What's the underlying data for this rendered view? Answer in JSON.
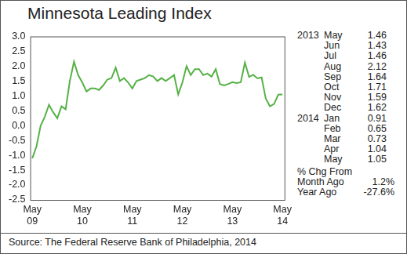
{
  "chart_data": {
    "type": "line",
    "title": "Minnesota Leading Index",
    "source": "Source: The Federal Reserve Bank of Philadelphia, 2014",
    "color": "#56b146",
    "grid": false,
    "categories": [
      "May 09",
      null,
      null,
      null,
      null,
      null,
      null,
      null,
      null,
      null,
      null,
      null,
      "May 10",
      null,
      null,
      null,
      null,
      null,
      null,
      null,
      null,
      null,
      null,
      null,
      "May 11",
      null,
      null,
      null,
      null,
      null,
      null,
      null,
      null,
      null,
      null,
      null,
      "May 12",
      null,
      null,
      null,
      null,
      null,
      null,
      null,
      null,
      null,
      null,
      null,
      "May 13",
      null,
      null,
      null,
      null,
      null,
      null,
      null,
      null,
      null,
      null,
      null,
      "May 14"
    ],
    "values": [
      -1.1,
      -0.7,
      0.0,
      0.3,
      0.7,
      0.45,
      0.25,
      0.65,
      0.55,
      1.5,
      2.15,
      1.7,
      1.45,
      1.15,
      1.25,
      1.25,
      1.2,
      1.35,
      1.55,
      1.6,
      1.95,
      1.5,
      1.6,
      1.45,
      1.25,
      1.5,
      1.55,
      1.6,
      1.7,
      1.65,
      1.5,
      1.6,
      1.5,
      1.6,
      1.7,
      1.05,
      1.45,
      2.0,
      1.7,
      1.9,
      1.9,
      1.7,
      1.75,
      1.65,
      1.9,
      1.4,
      1.35,
      1.4,
      1.46,
      1.43,
      1.46,
      2.12,
      1.64,
      1.71,
      1.59,
      1.62,
      0.91,
      0.65,
      0.73,
      1.04,
      1.05
    ],
    "ylim": [
      -2.5,
      3.0
    ],
    "yticks": [
      {
        "value": -2.5,
        "label": "-2.5"
      },
      {
        "value": -2,
        "label": "-2.0"
      },
      {
        "value": -1.5,
        "label": "-1.5"
      },
      {
        "value": -1,
        "label": "-1.0"
      },
      {
        "value": -0.5,
        "label": "-0.5"
      },
      {
        "value": 0,
        "label": "0.0"
      },
      {
        "value": 0.5,
        "label": "0.5"
      },
      {
        "value": 1,
        "label": "1.0"
      },
      {
        "value": 1.5,
        "label": "1.5"
      },
      {
        "value": 2,
        "label": "2.0"
      },
      {
        "value": 2.5,
        "label": "2.5"
      },
      {
        "value": 3,
        "label": "3.0"
      }
    ],
    "side_table": {
      "groups": [
        {
          "year": "2013",
          "rows": [
            [
              "May",
              "1.46"
            ],
            [
              "Jun",
              "1.43"
            ],
            [
              "Jul",
              "1.46"
            ],
            [
              "Aug",
              "2.12"
            ],
            [
              "Sep",
              "1.64"
            ],
            [
              "Oct",
              "1.71"
            ],
            [
              "Nov",
              "1.59"
            ],
            [
              "Dec",
              "1.62"
            ]
          ]
        },
        {
          "year": "2014",
          "rows": [
            [
              "Jan",
              "0.91"
            ],
            [
              "Feb",
              "0.65"
            ],
            [
              "Mar",
              "0.73"
            ],
            [
              "Apr",
              "1.04"
            ],
            [
              "May",
              "1.05"
            ]
          ]
        }
      ],
      "change": {
        "title": "% Chg From",
        "rows": [
          [
            "Month Ago",
            "1.2%"
          ],
          [
            "Year Ago",
            "-27.6%"
          ]
        ]
      }
    }
  }
}
